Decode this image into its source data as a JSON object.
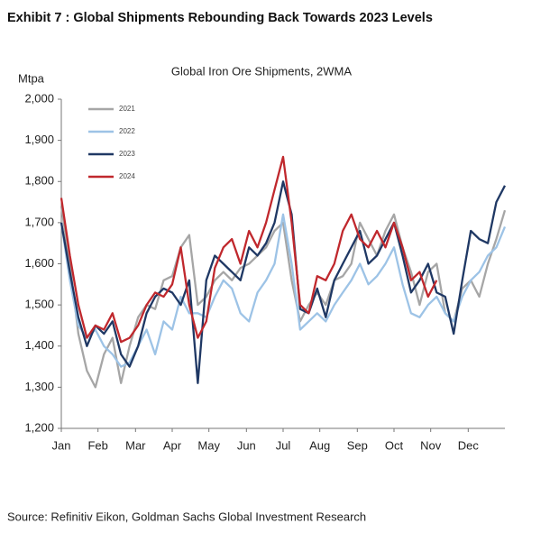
{
  "header": "Exhibit 7 : Global Shipments Rebounding Back Towards 2023 Levels",
  "source": "Source: Refinitiv Eikon, Goldman Sachs Global Investment Research",
  "chart_data": {
    "type": "line",
    "title": "Global Iron Ore Shipments, 2WMA",
    "y_label": "Mtpa",
    "x": [
      0,
      1,
      2,
      3,
      4,
      5,
      6,
      7,
      8,
      9,
      10,
      11,
      12,
      13,
      14,
      15,
      16,
      17,
      18,
      19,
      20,
      21,
      22,
      23,
      24,
      25,
      26,
      27,
      28,
      29,
      30,
      31,
      32,
      33,
      34,
      35,
      36,
      37,
      38,
      39,
      40,
      41,
      42,
      43,
      44,
      45,
      46,
      47,
      48,
      49,
      50,
      51,
      52
    ],
    "xlim": [
      0,
      52
    ],
    "xticks": [
      {
        "value": 0,
        "label": "Jan"
      },
      {
        "value": 4.3,
        "label": "Feb"
      },
      {
        "value": 8.7,
        "label": "Mar"
      },
      {
        "value": 13,
        "label": "Apr"
      },
      {
        "value": 17.3,
        "label": "May"
      },
      {
        "value": 21.7,
        "label": "Jun"
      },
      {
        "value": 26,
        "label": "Jul"
      },
      {
        "value": 30.3,
        "label": "Aug"
      },
      {
        "value": 34.7,
        "label": "Sep"
      },
      {
        "value": 39,
        "label": "Oct"
      },
      {
        "value": 43.3,
        "label": "Nov"
      },
      {
        "value": 47.7,
        "label": "Dec"
      }
    ],
    "ylim": [
      1200,
      2000
    ],
    "yticks": [
      {
        "value": 1200,
        "label": "1,200"
      },
      {
        "value": 1300,
        "label": "1,300"
      },
      {
        "value": 1400,
        "label": "1,400"
      },
      {
        "value": 1500,
        "label": "1,500"
      },
      {
        "value": 1600,
        "label": "1,600"
      },
      {
        "value": 1700,
        "label": "1,700"
      },
      {
        "value": 1800,
        "label": "1,800"
      },
      {
        "value": 1900,
        "label": "1,900"
      },
      {
        "value": 2000,
        "label": "2,000"
      }
    ],
    "legend": "upper left",
    "series": [
      {
        "name": "2021",
        "color": "#a6a6a6",
        "values": [
          1740,
          1600,
          1430,
          1340,
          1300,
          1380,
          1420,
          1310,
          1400,
          1470,
          1500,
          1490,
          1560,
          1570,
          1640,
          1670,
          1500,
          1520,
          1560,
          1580,
          1560,
          1590,
          1600,
          1620,
          1640,
          1680,
          1700,
          1560,
          1460,
          1500,
          1530,
          1500,
          1560,
          1570,
          1600,
          1700,
          1660,
          1620,
          1680,
          1720,
          1640,
          1580,
          1500,
          1580,
          1600,
          1480,
          1460,
          1540,
          1560,
          1520,
          1600,
          1660,
          1730
        ]
      },
      {
        "name": "2022",
        "color": "#9dc3e6",
        "values": [
          1700,
          1560,
          1450,
          1420,
          1440,
          1400,
          1380,
          1350,
          1360,
          1400,
          1440,
          1380,
          1460,
          1440,
          1520,
          1480,
          1480,
          1470,
          1520,
          1560,
          1540,
          1480,
          1460,
          1530,
          1560,
          1600,
          1720,
          1600,
          1440,
          1460,
          1480,
          1460,
          1500,
          1530,
          1560,
          1600,
          1550,
          1570,
          1600,
          1640,
          1550,
          1480,
          1470,
          1500,
          1520,
          1480,
          1460,
          1520,
          1560,
          1580,
          1620,
          1640,
          1690
        ]
      },
      {
        "name": "2023",
        "color": "#1f3864",
        "values": [
          1700,
          1580,
          1470,
          1400,
          1450,
          1430,
          1460,
          1380,
          1350,
          1400,
          1480,
          1520,
          1540,
          1530,
          1500,
          1560,
          1310,
          1560,
          1620,
          1600,
          1580,
          1560,
          1640,
          1620,
          1650,
          1700,
          1800,
          1720,
          1490,
          1480,
          1540,
          1470,
          1560,
          1600,
          1640,
          1680,
          1600,
          1620,
          1660,
          1700,
          1620,
          1530,
          1560,
          1600,
          1530,
          1520,
          1430,
          1560,
          1680,
          1660,
          1650,
          1750,
          1790
        ]
      },
      {
        "name": "2024",
        "color": "#c0282d",
        "values": [
          1760,
          1620,
          1500,
          1420,
          1450,
          1440,
          1480,
          1410,
          1420,
          1450,
          1500,
          1530,
          1520,
          1550,
          1640,
          1500,
          1420,
          1460,
          1590,
          1640,
          1660,
          1600,
          1680,
          1640,
          1700,
          1780,
          1860,
          1700,
          1500,
          1480,
          1570,
          1560,
          1600,
          1680,
          1720,
          1660,
          1640,
          1680,
          1640,
          1700,
          1640,
          1560,
          1580,
          1520,
          1560,
          null,
          null,
          null,
          null,
          null,
          null,
          null,
          null
        ]
      }
    ]
  }
}
